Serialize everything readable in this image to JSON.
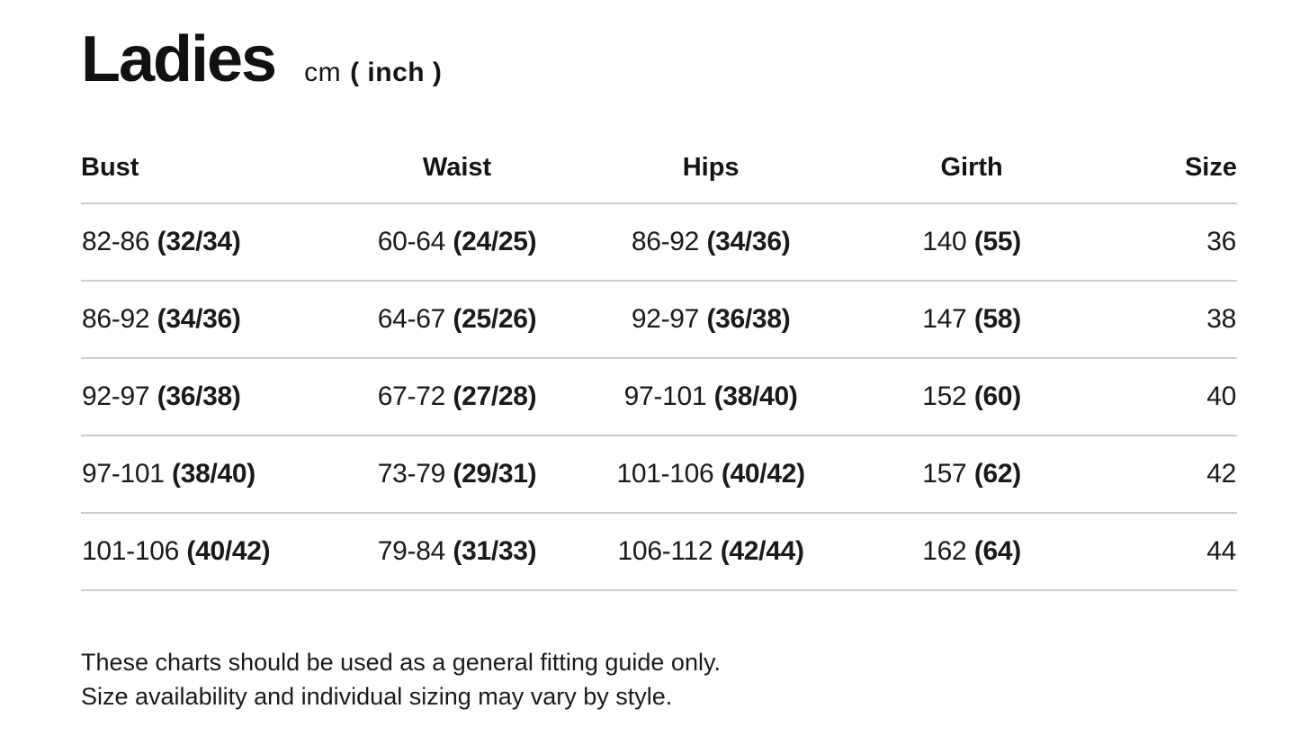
{
  "header": {
    "title": "Ladies",
    "unit_prefix": "cm",
    "unit_suffix": "( inch )"
  },
  "table": {
    "columns": [
      {
        "label": "Bust",
        "align": "left"
      },
      {
        "label": "Waist",
        "align": "center"
      },
      {
        "label": "Hips",
        "align": "center"
      },
      {
        "label": "Girth",
        "align": "center"
      },
      {
        "label": "Size",
        "align": "right"
      }
    ],
    "rows": [
      {
        "bust_cm": "82-86",
        "bust_in": "(32/34)",
        "waist_cm": "60-64",
        "waist_in": "(24/25)",
        "hips_cm": "86-92",
        "hips_in": "(34/36)",
        "girth_cm": "140",
        "girth_in": "(55)",
        "size": "36"
      },
      {
        "bust_cm": "86-92",
        "bust_in": "(34/36)",
        "waist_cm": "64-67",
        "waist_in": "(25/26)",
        "hips_cm": "92-97",
        "hips_in": "(36/38)",
        "girth_cm": "147",
        "girth_in": "(58)",
        "size": "38"
      },
      {
        "bust_cm": "92-97",
        "bust_in": "(36/38)",
        "waist_cm": "67-72",
        "waist_in": "(27/28)",
        "hips_cm": "97-101",
        "hips_in": "(38/40)",
        "girth_cm": "152",
        "girth_in": "(60)",
        "size": "40"
      },
      {
        "bust_cm": "97-101",
        "bust_in": "(38/40)",
        "waist_cm": "73-79",
        "waist_in": "(29/31)",
        "hips_cm": "101-106",
        "hips_in": "(40/42)",
        "girth_cm": "157",
        "girth_in": "(62)",
        "size": "42"
      },
      {
        "bust_cm": "101-106",
        "bust_in": "(40/42)",
        "waist_cm": "79-84",
        "waist_in": "(31/33)",
        "hips_cm": "106-112",
        "hips_in": "(42/44)",
        "girth_cm": "162",
        "girth_in": "(64)",
        "size": "44"
      }
    ]
  },
  "footer": {
    "line1": "These charts should be used as a general fitting guide only.",
    "line2": "Size availability and individual sizing may vary by style."
  },
  "colors": {
    "text": "#141414",
    "divider": "#cccccc",
    "background": "#ffffff"
  }
}
